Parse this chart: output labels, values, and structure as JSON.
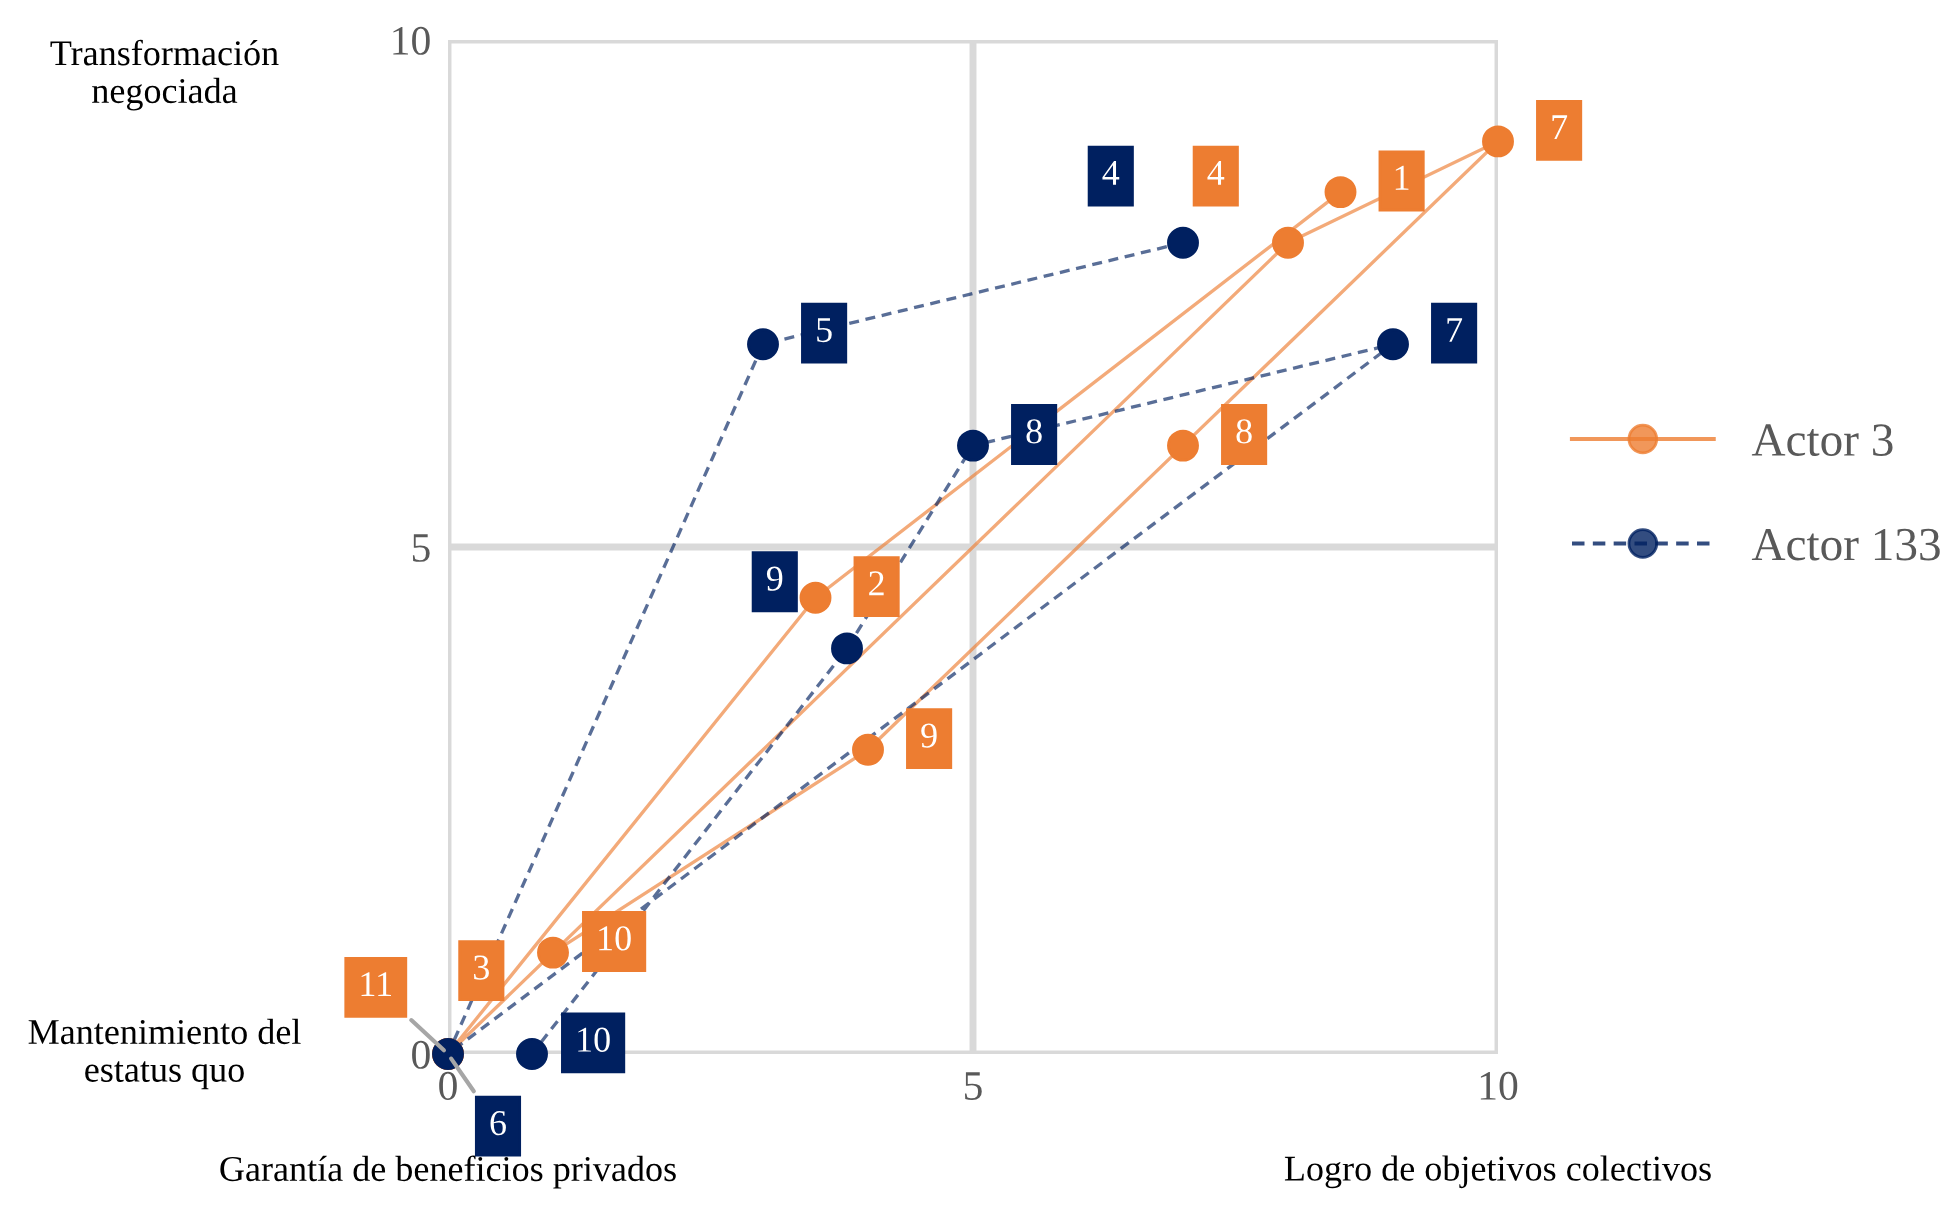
{
  "chart_data": {
    "type": "line",
    "xlim": [
      0,
      10
    ],
    "ylim": [
      0,
      10
    ],
    "xticks": [
      0,
      5,
      10
    ],
    "yticks": [
      0,
      5,
      10
    ],
    "grid": true,
    "legend": "right",
    "marker": "circle",
    "annotations": [
      "Transformación negociada",
      "Mantenimiento del estatus quo",
      "Garantía de beneficios privados",
      "Logro de objetivos colectivos",
      {
        "text": "1",
        "x": 8.5,
        "y": 8.5
      },
      {
        "text": "2",
        "x": 3.5,
        "y": 4.5
      },
      {
        "text": "3",
        "x": 0,
        "y": 0
      },
      {
        "text": "4",
        "x": 8,
        "y": 8
      },
      {
        "text": "7",
        "x": 10,
        "y": 9
      },
      {
        "text": "8",
        "x": 7,
        "y": 6
      },
      {
        "text": "9",
        "x": 4,
        "y": 3
      },
      {
        "text": "10",
        "x": 1,
        "y": 1
      },
      {
        "text": "11",
        "x": 0,
        "y": 0
      },
      {
        "text": "4",
        "x": 7,
        "y": 8
      },
      {
        "text": "5",
        "x": 3,
        "y": 7
      },
      {
        "text": "6",
        "x": 0,
        "y": 0
      },
      {
        "text": "7",
        "x": 9,
        "y": 7
      },
      {
        "text": "8",
        "x": 5,
        "y": 6
      },
      {
        "text": "9",
        "x": 3.8,
        "y": 4
      },
      {
        "text": "10",
        "x": 0.8,
        "y": 0
      }
    ],
    "series": [
      {
        "name": "Actor 3",
        "color": "#ed7d31",
        "line_style": "solid",
        "x": [
          8.5,
          3.5,
          0,
          8,
          10,
          7,
          4,
          1,
          0
        ],
        "values": [
          8.5,
          4.5,
          0,
          8,
          9,
          6,
          3,
          1,
          0
        ]
      },
      {
        "name": "Actor 133",
        "color": "#002060",
        "line_style": "dashed",
        "x": [
          7,
          3,
          0,
          9,
          5,
          3.8,
          0.8
        ],
        "values": [
          8,
          7,
          0,
          7,
          6,
          4,
          0
        ]
      }
    ]
  }
}
